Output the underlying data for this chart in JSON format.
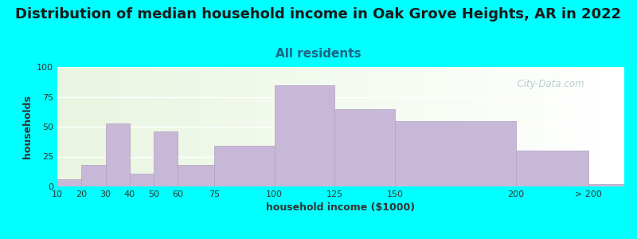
{
  "title": "Distribution of median household income in Oak Grove Heights, AR in 2022",
  "subtitle": "All residents",
  "xlabel": "household income ($1000)",
  "ylabel": "households",
  "background_color": "#00FFFF",
  "plot_bg_color_left": "#e8f5e0",
  "plot_bg_color_right": "#ffffff",
  "bar_color": "#c8b8d8",
  "bar_edge_color": "#b0a0c0",
  "bin_edges": [
    10,
    20,
    30,
    40,
    50,
    60,
    75,
    100,
    125,
    150,
    200,
    230,
    245
  ],
  "tick_positions": [
    10,
    20,
    30,
    40,
    50,
    60,
    75,
    100,
    125,
    150,
    200,
    230
  ],
  "tick_labels": [
    "10",
    "20",
    "30",
    "40",
    "50",
    "60",
    "75",
    "100",
    "125",
    "150",
    "200",
    "> 200"
  ],
  "values": [
    6,
    18,
    53,
    11,
    46,
    18,
    34,
    85,
    65,
    55,
    30,
    2
  ],
  "ylim": [
    0,
    100
  ],
  "yticks": [
    0,
    25,
    50,
    75,
    100
  ],
  "title_fontsize": 13,
  "subtitle_fontsize": 11,
  "axis_label_fontsize": 9,
  "tick_fontsize": 8,
  "watermark_text": "  City-Data.com",
  "watermark_color": "#b0c8c8"
}
